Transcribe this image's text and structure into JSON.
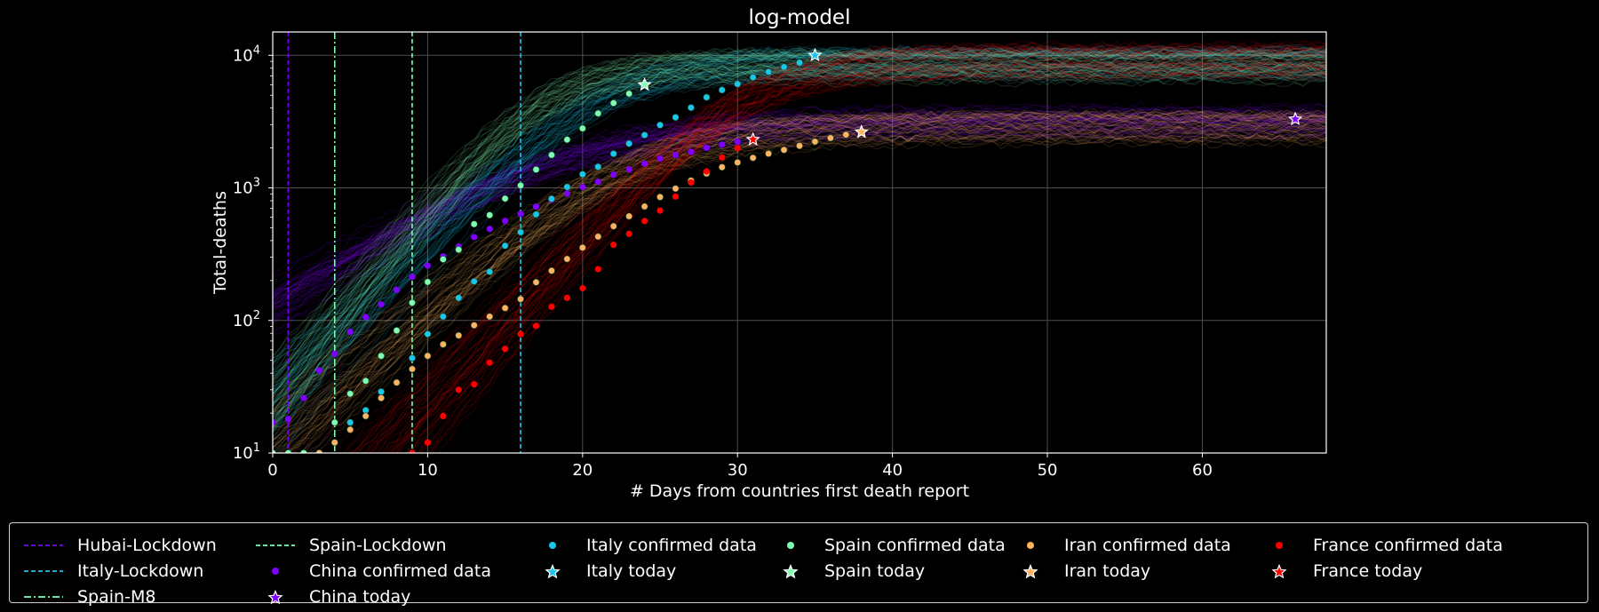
{
  "chart_data": {
    "type": "line",
    "title": "log-model",
    "xlabel": "# Days from countries first death report",
    "ylabel": "Total-deaths",
    "xlim": [
      0,
      68
    ],
    "ylim": [
      10,
      15000
    ],
    "yscale": "log",
    "grid": true,
    "x_ticks": [
      0,
      10,
      20,
      30,
      40,
      50,
      60
    ],
    "x_tick_labels": [
      "0",
      "10",
      "20",
      "30",
      "40",
      "50",
      "60"
    ],
    "y_ticks": [
      10,
      100,
      1000,
      10000
    ],
    "y_tick_labels": [
      "10",
      "10",
      "10",
      "10"
    ],
    "y_tick_exponents": [
      "1",
      "2",
      "3",
      "4"
    ],
    "legend_placement": "below",
    "lockdowns": [
      {
        "name": "Hubai-Lockdown",
        "x": 1,
        "color": "#8000ff",
        "style": "dashed"
      },
      {
        "name": "Italy-Lockdown",
        "x": 16,
        "color": "#1ac7ec",
        "style": "dashed"
      },
      {
        "name": "Spain-M8",
        "x": 4,
        "color": "#80ffb4",
        "style": "dashdot"
      },
      {
        "name": "Spain-Lockdown",
        "x": 9,
        "color": "#80ffb4",
        "style": "dashed"
      }
    ],
    "series": [
      {
        "country": "China",
        "color": "#8000ff",
        "data_name": "China confirmed data",
        "today_name": "China today",
        "model": {
          "L": 3250,
          "k": 0.17,
          "x0": 18.5
        },
        "confirmed": {
          "x": [
            0,
            1,
            2,
            3,
            4,
            5,
            6,
            7,
            8,
            9,
            10,
            11,
            12,
            13,
            14,
            15,
            16,
            17,
            18,
            19,
            20,
            21,
            22,
            23,
            24,
            25,
            26,
            27,
            28,
            29,
            30
          ],
          "y": [
            17,
            18,
            26,
            42,
            56,
            82,
            106,
            132,
            170,
            213,
            259,
            304,
            361,
            425,
            490,
            563,
            637,
            722,
            811,
            905,
            1016,
            1113,
            1259,
            1380,
            1523,
            1665,
            1770,
            1868,
            2004,
            2118,
            2236
          ]
        },
        "today": {
          "x": 66,
          "y": 3300
        }
      },
      {
        "country": "Italy",
        "color": "#1ac7ec",
        "data_name": "Italy confirmed data",
        "today_name": "Italy today",
        "model": {
          "L": 9000,
          "k": 0.28,
          "x0": 21
        },
        "confirmed": {
          "x": [
            4,
            5,
            6,
            7,
            8,
            9,
            10,
            11,
            12,
            13,
            14,
            15,
            16,
            17,
            18,
            19,
            20,
            21,
            22,
            23,
            24,
            25,
            26,
            27,
            28,
            29,
            30,
            31,
            32,
            33,
            34,
            35
          ],
          "y": [
            12,
            17,
            21,
            29,
            34,
            52,
            79,
            107,
            148,
            197,
            233,
            366,
            463,
            631,
            827,
            1016,
            1266,
            1441,
            1809,
            2158,
            2503,
            2978,
            3405,
            4032,
            4825,
            5476,
            6077,
            6820,
            7503,
            8165,
            8800,
            10000
          ]
        },
        "today": {
          "x": 35,
          "y": 10000
        }
      },
      {
        "country": "Spain",
        "color": "#80ffb4",
        "data_name": "Spain confirmed data",
        "today_name": "Spain today",
        "model": {
          "L": 8500,
          "k": 0.33,
          "x0": 17.5
        },
        "confirmed": {
          "x": [
            0,
            1,
            2,
            3,
            4,
            5,
            6,
            7,
            8,
            9,
            10,
            11,
            12,
            13,
            14,
            15,
            16,
            17,
            18,
            19,
            20,
            21,
            22,
            23,
            24
          ],
          "y": [
            10,
            10,
            10,
            10,
            17,
            28,
            35,
            54,
            84,
            136,
            195,
            289,
            342,
            533,
            623,
            830,
            1043,
            1375,
            1772,
            2311,
            2808,
            3647,
            4365,
            5138,
            6000
          ]
        },
        "today": {
          "x": 24,
          "y": 6000
        }
      },
      {
        "country": "Iran",
        "color": "#ffb360",
        "data_name": "Iran confirmed data",
        "today_name": "Iran today",
        "model": {
          "L": 2900,
          "k": 0.24,
          "x0": 23.5
        },
        "confirmed": {
          "x": [
            3,
            4,
            5,
            6,
            7,
            8,
            9,
            10,
            11,
            12,
            13,
            14,
            15,
            16,
            17,
            18,
            19,
            20,
            21,
            22,
            23,
            24,
            25,
            26,
            27,
            28,
            29,
            30,
            31,
            32,
            33,
            34,
            35,
            36,
            37,
            38
          ],
          "y": [
            10,
            12,
            15,
            19,
            26,
            34,
            43,
            54,
            66,
            77,
            92,
            107,
            124,
            145,
            194,
            237,
            291,
            354,
            429,
            514,
            611,
            724,
            853,
            988,
            1135,
            1284,
            1433,
            1556,
            1685,
            1812,
            1934,
            2077,
            2234,
            2378,
            2517,
            2640
          ]
        },
        "today": {
          "x": 38,
          "y": 2640
        }
      },
      {
        "country": "France",
        "color": "#ff0000",
        "data_name": "France confirmed data",
        "today_name": "France today",
        "model": {
          "L": 9500,
          "k": 0.3,
          "x0": 30.5
        },
        "confirmed": {
          "x": [
            9,
            10,
            11,
            12,
            13,
            14,
            15,
            16,
            17,
            18,
            19,
            20,
            21,
            22,
            23,
            24,
            25,
            26,
            27,
            28,
            29,
            30,
            31
          ],
          "y": [
            10,
            12,
            19,
            30,
            33,
            48,
            61,
            79,
            91,
            127,
            148,
            175,
            244,
            372,
            450,
            562,
            674,
            860,
            1100,
            1331,
            1696,
            1995,
            2314
          ]
        },
        "today": {
          "x": 31,
          "y": 2314
        }
      }
    ]
  },
  "legend": {
    "items": [
      {
        "label": "Hubai-Lockdown",
        "kind": "dashed",
        "color": "#8000ff"
      },
      {
        "label": "Italy-Lockdown",
        "kind": "dashed",
        "color": "#1ac7ec"
      },
      {
        "label": "Spain-M8",
        "kind": "dashdot",
        "color": "#80ffb4"
      },
      {
        "label": "Spain-Lockdown",
        "kind": "dashed",
        "color": "#80ffb4"
      },
      {
        "label": "China confirmed data",
        "kind": "dot",
        "color": "#8000ff"
      },
      {
        "label": "China today",
        "kind": "star",
        "color": "#8000ff"
      },
      {
        "label": "Italy confirmed data",
        "kind": "dot",
        "color": "#1ac7ec"
      },
      {
        "label": "Italy today",
        "kind": "star",
        "color": "#1ac7ec"
      },
      {
        "label": "Spain confirmed data",
        "kind": "dot",
        "color": "#80ffb4"
      },
      {
        "label": "Spain today",
        "kind": "star",
        "color": "#80ffb4"
      },
      {
        "label": "Iran confirmed data",
        "kind": "dot",
        "color": "#ffb360"
      },
      {
        "label": "Iran today",
        "kind": "star",
        "color": "#ffb360"
      },
      {
        "label": "France confirmed data",
        "kind": "dot",
        "color": "#ff0000"
      },
      {
        "label": "France today",
        "kind": "star",
        "color": "#ff0000"
      }
    ]
  }
}
